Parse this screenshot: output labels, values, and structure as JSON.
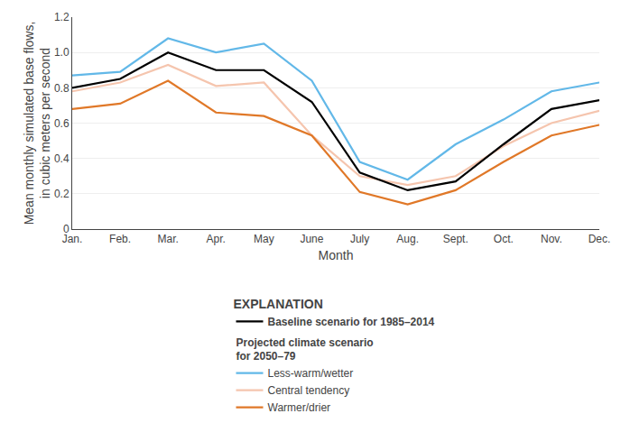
{
  "chart_data": {
    "type": "line",
    "categories": [
      "Jan.",
      "Feb.",
      "Mar.",
      "Apr.",
      "May",
      "June",
      "July",
      "Aug.",
      "Sept.",
      "Oct.",
      "Nov.",
      "Dec."
    ],
    "series": [
      {
        "name": "Less-warm/wetter",
        "group": "Projected climate scenario\nfor 2050–79",
        "color": "#62b8e8",
        "values": [
          0.87,
          0.89,
          1.08,
          1.0,
          1.05,
          0.84,
          0.38,
          0.28,
          0.48,
          0.62,
          0.78,
          0.83
        ]
      },
      {
        "name": "Central tendency",
        "group": "Projected climate scenario\nfor 2050–79",
        "color": "#f5c5ae",
        "values": [
          0.78,
          0.83,
          0.93,
          0.81,
          0.83,
          0.53,
          0.3,
          0.25,
          0.3,
          0.47,
          0.6,
          0.67
        ]
      },
      {
        "name": "Baseline scenario for 1985–2014",
        "color": "#000000",
        "values": [
          0.8,
          0.85,
          1.0,
          0.9,
          0.9,
          0.72,
          0.32,
          0.22,
          0.27,
          0.48,
          0.68,
          0.73
        ]
      },
      {
        "name": "Warmer/drier",
        "group": "Projected climate scenario\nfor 2050–79",
        "color": "#e07828",
        "values": [
          0.68,
          0.71,
          0.84,
          0.66,
          0.64,
          0.53,
          0.21,
          0.14,
          0.22,
          0.38,
          0.53,
          0.59
        ]
      }
    ],
    "legend_title": "EXPLANATION",
    "xlabel": "Month",
    "ylabel": "Mean monthly simulated base flows,\nin cubic meters per second",
    "ylim": [
      0,
      1.2
    ],
    "yticks": [
      0,
      0.2,
      0.4,
      0.6,
      0.8,
      {
        "value": 1.0,
        "label": "1.0"
      },
      1.2
    ],
    "grid": true
  }
}
